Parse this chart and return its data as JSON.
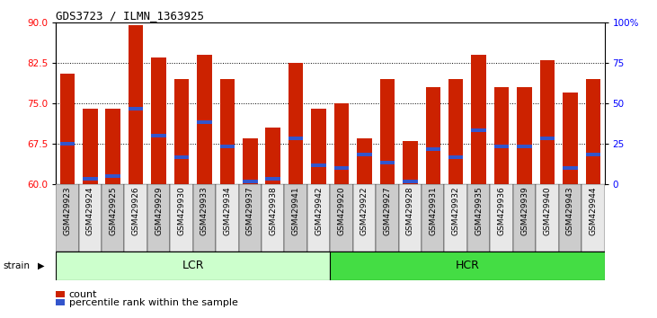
{
  "title": "GDS3723 / ILMN_1363925",
  "samples": [
    "GSM429923",
    "GSM429924",
    "GSM429925",
    "GSM429926",
    "GSM429929",
    "GSM429930",
    "GSM429933",
    "GSM429934",
    "GSM429937",
    "GSM429938",
    "GSM429941",
    "GSM429942",
    "GSM429920",
    "GSM429922",
    "GSM429927",
    "GSM429928",
    "GSM429931",
    "GSM429932",
    "GSM429935",
    "GSM429936",
    "GSM429939",
    "GSM429940",
    "GSM429943",
    "GSM429944"
  ],
  "bar_heights": [
    80.5,
    74.0,
    74.0,
    89.5,
    83.5,
    79.5,
    84.0,
    79.5,
    68.5,
    70.5,
    82.5,
    74.0,
    75.0,
    68.5,
    79.5,
    68.0,
    78.0,
    79.5,
    84.0,
    78.0,
    78.0,
    83.0,
    77.0,
    79.5
  ],
  "blue_markers": [
    67.5,
    61.0,
    61.5,
    74.0,
    69.0,
    65.0,
    71.5,
    67.0,
    60.5,
    61.0,
    68.5,
    63.5,
    63.0,
    65.5,
    64.0,
    60.5,
    66.5,
    65.0,
    70.0,
    67.0,
    67.0,
    68.5,
    63.0,
    65.5
  ],
  "ylim_left": [
    60,
    90
  ],
  "ylim_right": [
    0,
    100
  ],
  "yticks_left": [
    60,
    67.5,
    75,
    82.5,
    90
  ],
  "yticks_right": [
    0,
    25,
    50,
    75,
    100
  ],
  "bar_color": "#cc2200",
  "blue_color": "#3355cc",
  "lcr_color": "#ccffcc",
  "hcr_color": "#44dd44",
  "bar_width": 0.65,
  "legend_count_label": "count",
  "legend_pct_label": "percentile rank within the sample",
  "lcr_count": 12,
  "hcr_count": 12
}
